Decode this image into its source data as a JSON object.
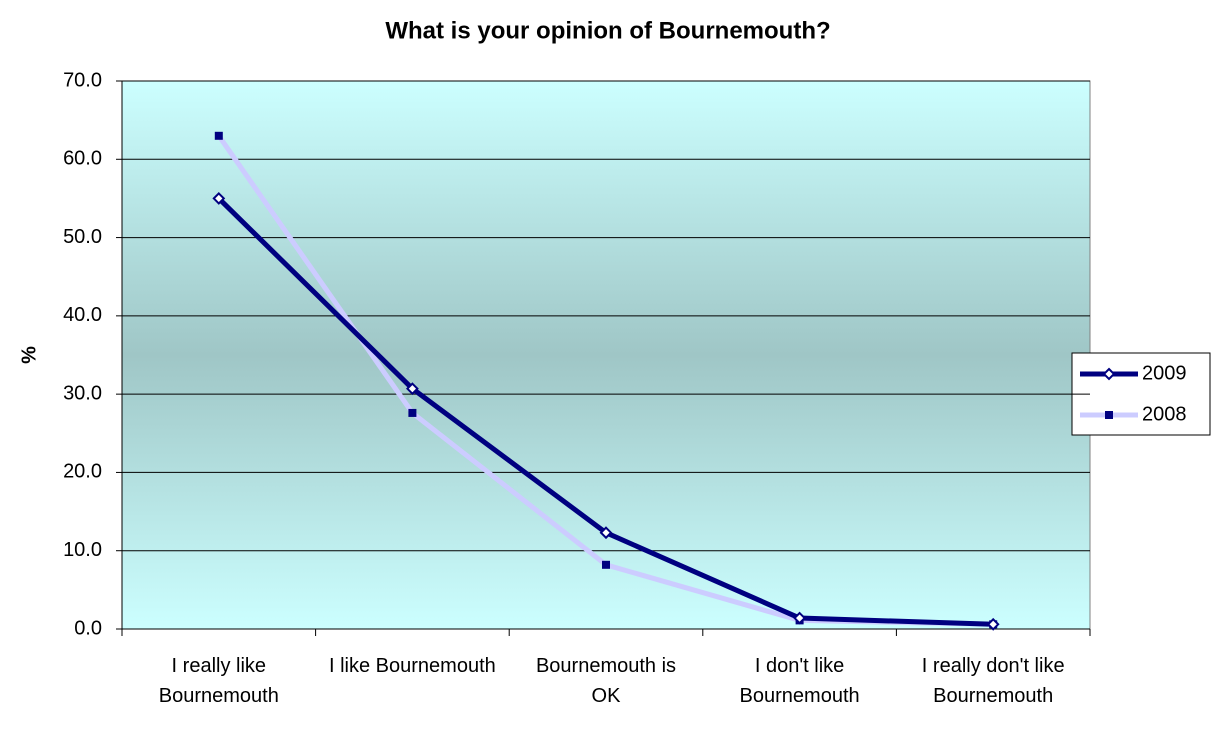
{
  "chart_data": {
    "type": "line",
    "title": "What is your opinion of Bournemouth?",
    "y_label": "%",
    "categories": [
      "I really like Bournemouth",
      "I like Bournemouth",
      "Bournemouth is OK",
      "I don't like Bournemouth",
      "I really don't like Bournemouth"
    ],
    "series": [
      {
        "name": "2009",
        "color": "#000080",
        "marker": "diamond",
        "values": [
          55.0,
          30.7,
          12.3,
          1.4,
          0.6
        ]
      },
      {
        "name": "2008",
        "color": "#ccccff",
        "marker": "square",
        "values": [
          63.0,
          27.6,
          8.2,
          1.1,
          0.6
        ]
      }
    ],
    "ylim": [
      0,
      70
    ],
    "yticks": [
      {
        "value": 0,
        "label": "0.0"
      },
      {
        "value": 10,
        "label": "10.0"
      },
      {
        "value": 20,
        "label": "20.0"
      },
      {
        "value": 30,
        "label": "30.0"
      },
      {
        "value": 40,
        "label": "40.0"
      },
      {
        "value": 50,
        "label": "50.0"
      },
      {
        "value": 60,
        "label": "60.0"
      },
      {
        "value": 70,
        "label": "70.0"
      }
    ],
    "grid": true,
    "legend": "right"
  }
}
